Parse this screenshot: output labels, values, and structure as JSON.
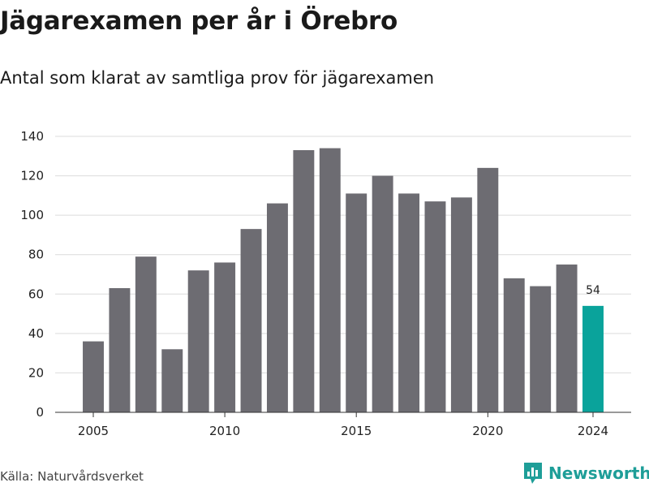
{
  "header": {
    "title": "Jägarexamen per år i Örebro",
    "subtitle": "Antal som klarat av samtliga prov för jägarexamen"
  },
  "footer": {
    "source": "Källa: Naturvårdsverket",
    "brand": "Newsworthy",
    "brand_icon": "newsworthy-logo-icon"
  },
  "colors": {
    "bar": "#6d6c72",
    "highlight": "#0aa39b",
    "grid": "#dcdcdc",
    "axis": "#333333",
    "brand": "#1e9e98"
  },
  "chart_data": {
    "type": "bar",
    "title": "Jägarexamen per år i Örebro",
    "subtitle": "Antal som klarat av samtliga prov för jägarexamen",
    "xlabel": "",
    "ylabel": "",
    "x": [
      2005,
      2006,
      2007,
      2008,
      2009,
      2010,
      2011,
      2012,
      2013,
      2014,
      2015,
      2016,
      2017,
      2018,
      2019,
      2020,
      2021,
      2022,
      2023,
      2024
    ],
    "values": [
      36,
      63,
      79,
      32,
      72,
      76,
      93,
      106,
      133,
      134,
      111,
      120,
      111,
      107,
      109,
      124,
      68,
      64,
      75,
      54
    ],
    "ylim": [
      0,
      140
    ],
    "yticks": [
      0,
      20,
      40,
      60,
      80,
      100,
      120,
      140
    ],
    "xticks": [
      2005,
      2010,
      2015,
      2020,
      2024
    ],
    "highlight_x": 2024,
    "data_labels": [
      {
        "x": 2024,
        "label": "54"
      }
    ],
    "grid": true,
    "legend": "none"
  }
}
